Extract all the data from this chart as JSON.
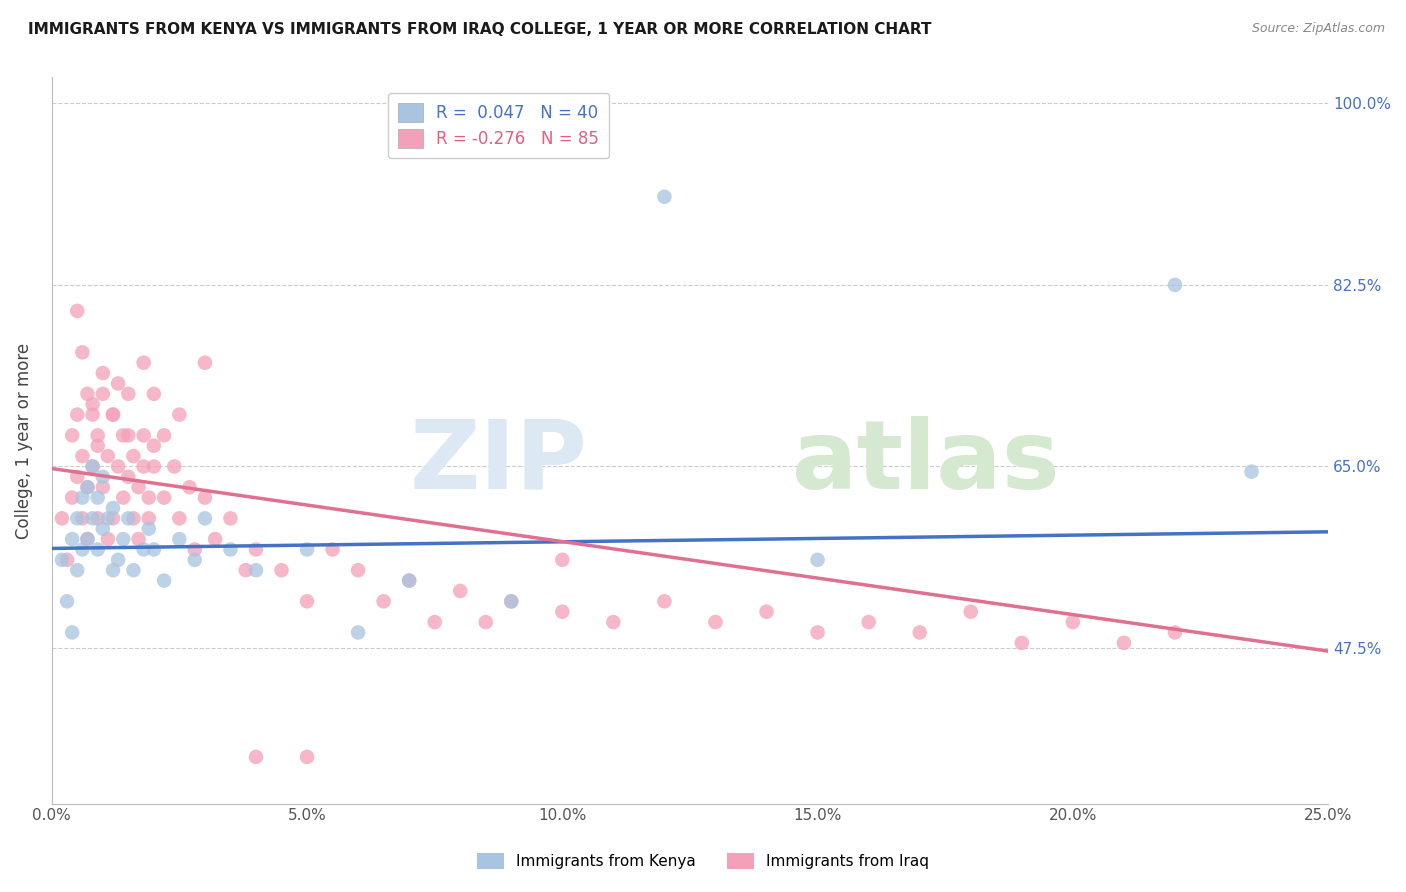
{
  "title": "IMMIGRANTS FROM KENYA VS IMMIGRANTS FROM IRAQ COLLEGE, 1 YEAR OR MORE CORRELATION CHART",
  "source": "Source: ZipAtlas.com",
  "ylabel": "College, 1 year or more",
  "xlim": [
    0.0,
    0.25
  ],
  "ylim": [
    0.325,
    1.025
  ],
  "xticks": [
    0.0,
    0.05,
    0.1,
    0.15,
    0.2,
    0.25
  ],
  "xticklabels": [
    "0.0%",
    "5.0%",
    "10.0%",
    "15.0%",
    "20.0%",
    "25.0%"
  ],
  "yticks": [
    0.475,
    0.65,
    0.825,
    1.0
  ],
  "yticklabels": [
    "47.5%",
    "65.0%",
    "82.5%",
    "100.0%"
  ],
  "kenya_R": 0.047,
  "kenya_N": 40,
  "iraq_R": -0.276,
  "iraq_N": 85,
  "kenya_color": "#a8c4e0",
  "iraq_color": "#f4a0b8",
  "kenya_line_color": "#4472c4",
  "iraq_line_color": "#e07090",
  "legend_label_kenya": "Immigrants from Kenya",
  "legend_label_iraq": "Immigrants from Iraq",
  "grid_color": "#cccccc",
  "kenya_x": [
    0.002,
    0.003,
    0.004,
    0.004,
    0.005,
    0.005,
    0.006,
    0.006,
    0.007,
    0.007,
    0.008,
    0.008,
    0.009,
    0.009,
    0.01,
    0.01,
    0.011,
    0.012,
    0.012,
    0.013,
    0.014,
    0.015,
    0.016,
    0.018,
    0.019,
    0.02,
    0.022,
    0.025,
    0.028,
    0.03,
    0.035,
    0.04,
    0.05,
    0.06,
    0.07,
    0.09,
    0.12,
    0.15,
    0.22,
    0.235
  ],
  "kenya_y": [
    0.56,
    0.52,
    0.49,
    0.58,
    0.6,
    0.55,
    0.62,
    0.57,
    0.63,
    0.58,
    0.65,
    0.6,
    0.57,
    0.62,
    0.59,
    0.64,
    0.6,
    0.55,
    0.61,
    0.56,
    0.58,
    0.6,
    0.55,
    0.57,
    0.59,
    0.57,
    0.54,
    0.58,
    0.56,
    0.6,
    0.57,
    0.55,
    0.57,
    0.49,
    0.54,
    0.52,
    0.91,
    0.56,
    0.825,
    0.645
  ],
  "iraq_x": [
    0.002,
    0.003,
    0.004,
    0.004,
    0.005,
    0.005,
    0.006,
    0.006,
    0.007,
    0.007,
    0.008,
    0.008,
    0.009,
    0.009,
    0.01,
    0.01,
    0.011,
    0.011,
    0.012,
    0.012,
    0.013,
    0.013,
    0.014,
    0.014,
    0.015,
    0.015,
    0.016,
    0.016,
    0.017,
    0.017,
    0.018,
    0.018,
    0.019,
    0.019,
    0.02,
    0.02,
    0.022,
    0.022,
    0.024,
    0.025,
    0.027,
    0.028,
    0.03,
    0.032,
    0.035,
    0.038,
    0.04,
    0.045,
    0.05,
    0.055,
    0.06,
    0.065,
    0.07,
    0.075,
    0.08,
    0.085,
    0.09,
    0.1,
    0.11,
    0.12,
    0.13,
    0.14,
    0.15,
    0.16,
    0.17,
    0.18,
    0.19,
    0.2,
    0.21,
    0.22,
    0.005,
    0.006,
    0.007,
    0.008,
    0.009,
    0.01,
    0.012,
    0.015,
    0.018,
    0.02,
    0.025,
    0.03,
    0.04,
    0.05,
    0.1
  ],
  "iraq_y": [
    0.6,
    0.56,
    0.62,
    0.68,
    0.64,
    0.7,
    0.6,
    0.66,
    0.63,
    0.58,
    0.71,
    0.65,
    0.6,
    0.68,
    0.72,
    0.63,
    0.58,
    0.66,
    0.7,
    0.6,
    0.65,
    0.73,
    0.62,
    0.68,
    0.64,
    0.72,
    0.6,
    0.66,
    0.58,
    0.63,
    0.68,
    0.75,
    0.62,
    0.6,
    0.65,
    0.72,
    0.68,
    0.62,
    0.65,
    0.6,
    0.63,
    0.57,
    0.62,
    0.58,
    0.6,
    0.55,
    0.57,
    0.55,
    0.52,
    0.57,
    0.55,
    0.52,
    0.54,
    0.5,
    0.53,
    0.5,
    0.52,
    0.51,
    0.5,
    0.52,
    0.5,
    0.51,
    0.49,
    0.5,
    0.49,
    0.51,
    0.48,
    0.5,
    0.48,
    0.49,
    0.8,
    0.76,
    0.72,
    0.7,
    0.67,
    0.74,
    0.7,
    0.68,
    0.65,
    0.67,
    0.7,
    0.75,
    0.37,
    0.37,
    0.56
  ],
  "kenya_trend_x": [
    0.0,
    0.25
  ],
  "kenya_trend_y": [
    0.571,
    0.587
  ],
  "iraq_trend_x": [
    0.0,
    0.25
  ],
  "iraq_trend_y": [
    0.648,
    0.472
  ]
}
